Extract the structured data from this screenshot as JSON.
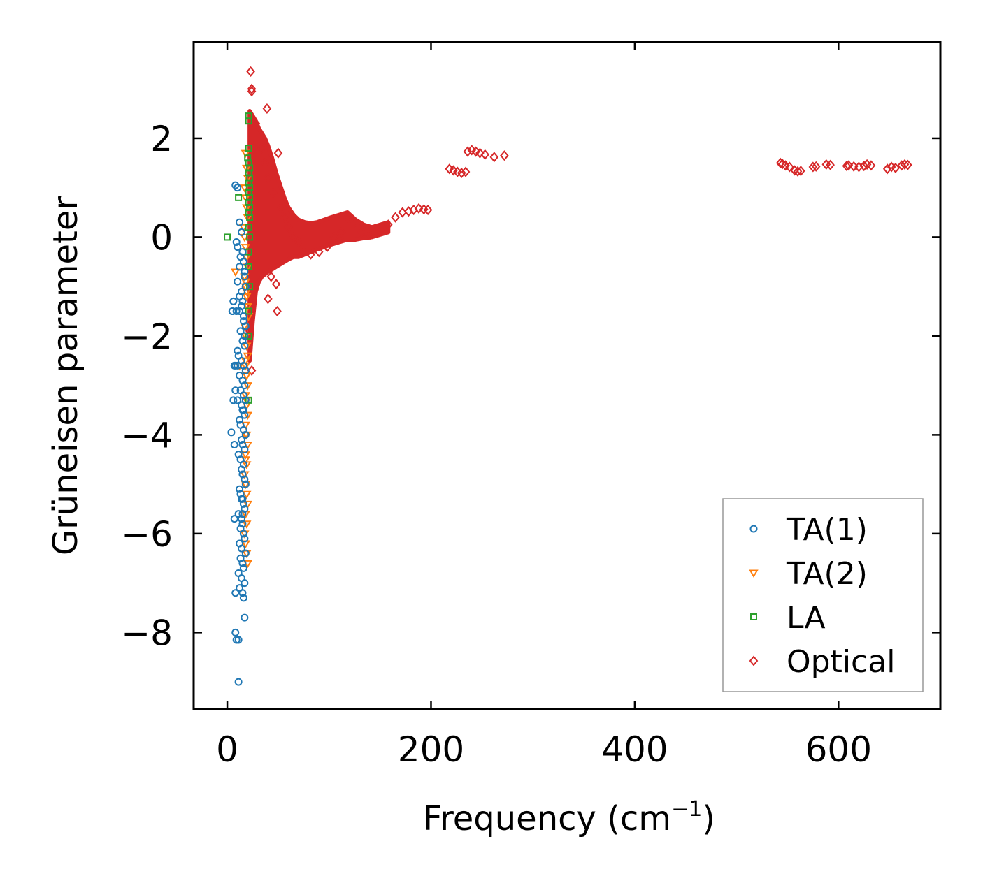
{
  "chart_data": {
    "type": "scatter",
    "xlabel": "Frequency (cm",
    "xlabel_sup": "−1",
    "xlabel_close": ")",
    "ylabel": "Grüneisen parameter",
    "xlim": [
      -33,
      700
    ],
    "ylim": [
      -9.55,
      3.95
    ],
    "xticks": [
      0,
      200,
      400,
      600
    ],
    "xtick_labels": [
      "0",
      "200",
      "400",
      "600"
    ],
    "yticks": [
      2,
      0,
      -2,
      -4,
      -6,
      -8
    ],
    "ytick_labels": [
      "2",
      "0",
      "−2",
      "−4",
      "−6",
      "−8"
    ],
    "legend_position": "lower-right",
    "series": [
      {
        "name": "TA(1)",
        "marker": "circle",
        "color": "#1f77b4",
        "x": [
          8,
          10,
          12,
          14,
          15,
          16,
          17,
          18,
          12,
          14,
          16,
          18,
          13,
          15,
          17,
          10,
          11,
          14,
          16,
          18,
          12,
          15,
          17,
          13,
          16,
          18,
          14,
          15,
          17,
          12,
          13,
          16,
          18,
          14,
          15,
          17,
          11,
          13,
          16,
          14,
          15,
          17,
          18,
          12,
          13,
          15,
          16,
          17,
          11,
          14,
          15,
          13,
          16,
          17,
          12,
          14,
          18,
          13,
          15,
          16,
          11,
          14,
          17,
          12,
          15,
          16,
          9,
          13,
          17,
          10,
          14,
          15,
          12,
          16,
          17,
          10,
          12,
          18,
          9,
          10,
          16,
          7,
          8,
          10,
          14,
          15,
          17,
          4,
          5,
          6,
          7,
          8,
          9,
          6,
          8,
          11
        ],
        "y": [
          1.05,
          1.0,
          0.3,
          0.1,
          -0.3,
          -0.5,
          -0.7,
          -1.0,
          -1.2,
          -1.4,
          -1.6,
          -1.8,
          -1.9,
          -2.1,
          -2.2,
          -2.3,
          -2.4,
          -2.5,
          -2.6,
          -2.7,
          -2.8,
          -2.9,
          -3.0,
          -3.1,
          -3.2,
          -3.3,
          -3.4,
          -3.5,
          -3.6,
          -3.7,
          -3.8,
          -3.9,
          -4.0,
          -4.1,
          -4.2,
          -4.3,
          -4.4,
          -4.5,
          -4.6,
          -4.7,
          -4.8,
          -4.9,
          -5.0,
          -5.1,
          -5.2,
          -5.3,
          -5.4,
          -5.5,
          -5.6,
          -5.7,
          -5.8,
          -5.9,
          -6.0,
          -6.1,
          -6.2,
          -6.3,
          -6.4,
          -6.5,
          -6.6,
          -6.7,
          -6.8,
          -6.9,
          -7.0,
          -7.1,
          -7.2,
          -7.3,
          -0.1,
          -0.4,
          -0.8,
          -0.9,
          -1.1,
          -1.3,
          -1.5,
          -1.7,
          -2.0,
          -0.2,
          -0.6,
          -1.0,
          -1.5,
          -2.6,
          -3.5,
          -4.2,
          -3.1,
          -3.3,
          -5.3,
          -5.6,
          -7.7,
          -3.95,
          -1.5,
          -1.3,
          -5.7,
          -8.0,
          -8.15,
          -3.3,
          -2.6,
          -9.0
        ],
        "x_extra": [
          5,
          6,
          7,
          8,
          11
        ],
        "y_extra": [
          -1.5,
          -1.3,
          -2.6,
          -7.2,
          -8.15
        ]
      },
      {
        "name": "TA(2)",
        "marker": "triangle-down",
        "color": "#ff7f0e",
        "x": [
          18,
          19,
          20,
          17,
          18,
          19,
          20,
          16,
          17,
          18,
          19,
          20,
          17,
          18,
          19,
          20,
          21,
          17,
          18,
          19,
          20,
          18,
          19,
          20,
          18,
          19,
          20,
          18,
          19,
          20,
          18,
          19,
          17,
          18,
          19,
          20,
          18,
          19,
          17,
          18,
          19,
          20,
          18,
          19,
          18,
          19,
          18,
          18,
          8,
          12
        ],
        "y": [
          1.7,
          1.4,
          1.2,
          1.0,
          0.8,
          0.6,
          0.4,
          0.2,
          0.0,
          -0.2,
          -0.4,
          -0.6,
          -0.8,
          -1.0,
          -1.2,
          -1.4,
          -1.6,
          -1.8,
          -2.0,
          -2.2,
          -2.4,
          -2.6,
          -2.8,
          -3.0,
          -3.2,
          -3.4,
          -3.6,
          -3.8,
          -4.0,
          -4.2,
          -4.4,
          -4.6,
          -4.8,
          -5.0,
          -5.2,
          -5.4,
          -5.6,
          -5.8,
          -6.0,
          -6.2,
          -6.4,
          -6.6,
          -0.9,
          -1.1,
          -2.5,
          -3.3,
          -4.0,
          -4.5,
          -0.7,
          -2.6
        ]
      },
      {
        "name": "LA",
        "marker": "square",
        "color": "#2ca02c",
        "x": [
          0,
          11,
          21,
          21,
          21,
          20,
          21,
          22,
          21,
          22,
          21,
          22,
          21,
          22,
          21,
          22,
          21,
          22,
          21,
          22,
          21,
          21,
          22,
          21,
          21,
          21
        ],
        "y": [
          0.0,
          0.8,
          2.45,
          2.35,
          1.8,
          1.6,
          1.5,
          1.4,
          1.3,
          1.2,
          1.1,
          1.0,
          0.9,
          0.8,
          0.7,
          0.6,
          0.5,
          0.4,
          0.2,
          0.0,
          -0.3,
          -0.6,
          -1.0,
          -1.5,
          -2.0,
          -3.3
        ]
      },
      {
        "name": "Optical",
        "marker": "diamond",
        "color": "#d62728",
        "x": [
          23,
          24,
          24,
          39,
          50,
          49,
          40,
          43,
          48,
          24,
          22,
          28,
          34,
          37,
          40,
          45,
          53,
          56,
          60,
          65,
          70,
          75,
          82,
          90,
          98,
          105,
          112,
          118,
          125,
          132,
          140,
          150,
          158,
          165,
          172,
          178,
          183,
          188,
          193,
          197,
          218,
          222,
          226,
          230,
          234,
          236,
          240,
          244,
          248,
          253,
          262,
          272,
          543,
          545,
          548,
          552,
          557,
          560,
          563,
          575,
          578,
          588,
          592,
          608,
          610,
          615,
          620,
          625,
          628,
          632,
          648,
          652,
          656,
          662,
          665,
          668
        ],
        "y": [
          3.35,
          3.0,
          2.95,
          2.6,
          1.7,
          -1.5,
          -1.25,
          -0.8,
          -0.95,
          -2.7,
          -1.9,
          2.3,
          1.8,
          1.5,
          1.2,
          0.9,
          0.6,
          0.4,
          0.2,
          0.0,
          -0.1,
          -0.3,
          -0.35,
          -0.3,
          -0.2,
          0.0,
          0.1,
          0.4,
          0.3,
          0.1,
          0.05,
          0.15,
          0.25,
          0.4,
          0.5,
          0.52,
          0.55,
          0.58,
          0.56,
          0.55,
          1.38,
          1.35,
          1.32,
          1.3,
          1.32,
          1.73,
          1.76,
          1.73,
          1.7,
          1.67,
          1.62,
          1.65,
          1.5,
          1.48,
          1.45,
          1.42,
          1.35,
          1.33,
          1.34,
          1.42,
          1.43,
          1.47,
          1.46,
          1.44,
          1.45,
          1.43,
          1.42,
          1.44,
          1.47,
          1.45,
          1.38,
          1.42,
          1.4,
          1.45,
          1.47,
          1.46
        ],
        "dense_band": {
          "description": "dense cluster of optical points 22-160 cm-1",
          "x": [
            22,
            25,
            28,
            31,
            34,
            37,
            40,
            44,
            48,
            52,
            56,
            60,
            65,
            70,
            76,
            82,
            88,
            95,
            102,
            110,
            118,
            126,
            134,
            142,
            150,
            158
          ],
          "y_top": [
            2.55,
            2.45,
            2.35,
            2.2,
            2.1,
            2.0,
            1.85,
            1.6,
            1.3,
            1.05,
            0.8,
            0.6,
            0.45,
            0.35,
            0.3,
            0.28,
            0.3,
            0.35,
            0.4,
            0.45,
            0.5,
            0.35,
            0.25,
            0.2,
            0.25,
            0.3
          ],
          "y_bottom": [
            -2.5,
            -1.7,
            -1.1,
            -0.9,
            -0.8,
            -0.75,
            -0.7,
            -0.65,
            -0.6,
            -0.55,
            -0.5,
            -0.45,
            -0.4,
            -0.4,
            -0.35,
            -0.3,
            -0.25,
            -0.2,
            -0.15,
            -0.1,
            -0.05,
            -0.05,
            -0.02,
            0.0,
            0.05,
            0.1
          ]
        }
      }
    ]
  }
}
